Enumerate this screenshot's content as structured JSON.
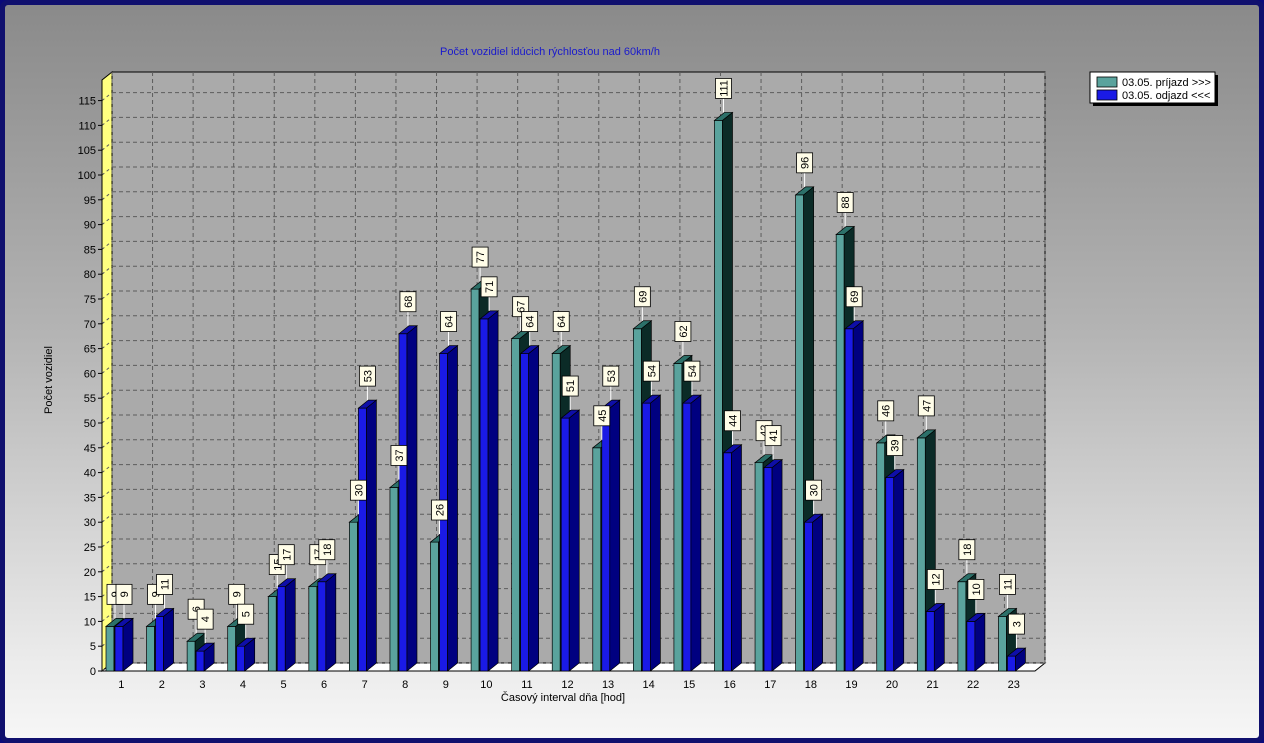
{
  "colors": {
    "series1_front": "#5aa39d",
    "series1_top": "#2c7069",
    "series1_side": "#0b2b27",
    "series2_front": "#1a1ae6",
    "series2_top": "#0e0ea8",
    "series2_side": "#000080",
    "title": "#1a1acc",
    "wall_yellow": "#ffff80"
  },
  "chart_data": {
    "type": "bar",
    "title": "Počet vozidiel idúcich rýchlosťou nad 60km/h",
    "xlabel": "Časový interval dňa [hod]",
    "ylabel": "Počet vozidiel",
    "ylim": [
      0,
      115
    ],
    "yticks": [
      0,
      5,
      10,
      15,
      20,
      25,
      30,
      35,
      40,
      45,
      50,
      55,
      60,
      65,
      70,
      75,
      80,
      85,
      90,
      95,
      100,
      105,
      110,
      115
    ],
    "grid": true,
    "legend_position": "top-right",
    "categories": [
      "1",
      "2",
      "3",
      "4",
      "5",
      "6",
      "7",
      "8",
      "9",
      "10",
      "11",
      "12",
      "13",
      "14",
      "15",
      "16",
      "17",
      "18",
      "19",
      "20",
      "21",
      "22",
      "23"
    ],
    "series": [
      {
        "name": "03.05.  príjazd >>>",
        "values": [
          9,
          9,
          6,
          9,
          15,
          17,
          30,
          37,
          26,
          77,
          67,
          64,
          45,
          69,
          62,
          111,
          42,
          96,
          88,
          46,
          47,
          18,
          11
        ]
      },
      {
        "name": "03.05.  odjazd <<<",
        "values": [
          9,
          11,
          4,
          5,
          17,
          18,
          53,
          68,
          64,
          71,
          64,
          51,
          53,
          54,
          54,
          44,
          41,
          30,
          69,
          39,
          12,
          10,
          3
        ]
      }
    ]
  }
}
